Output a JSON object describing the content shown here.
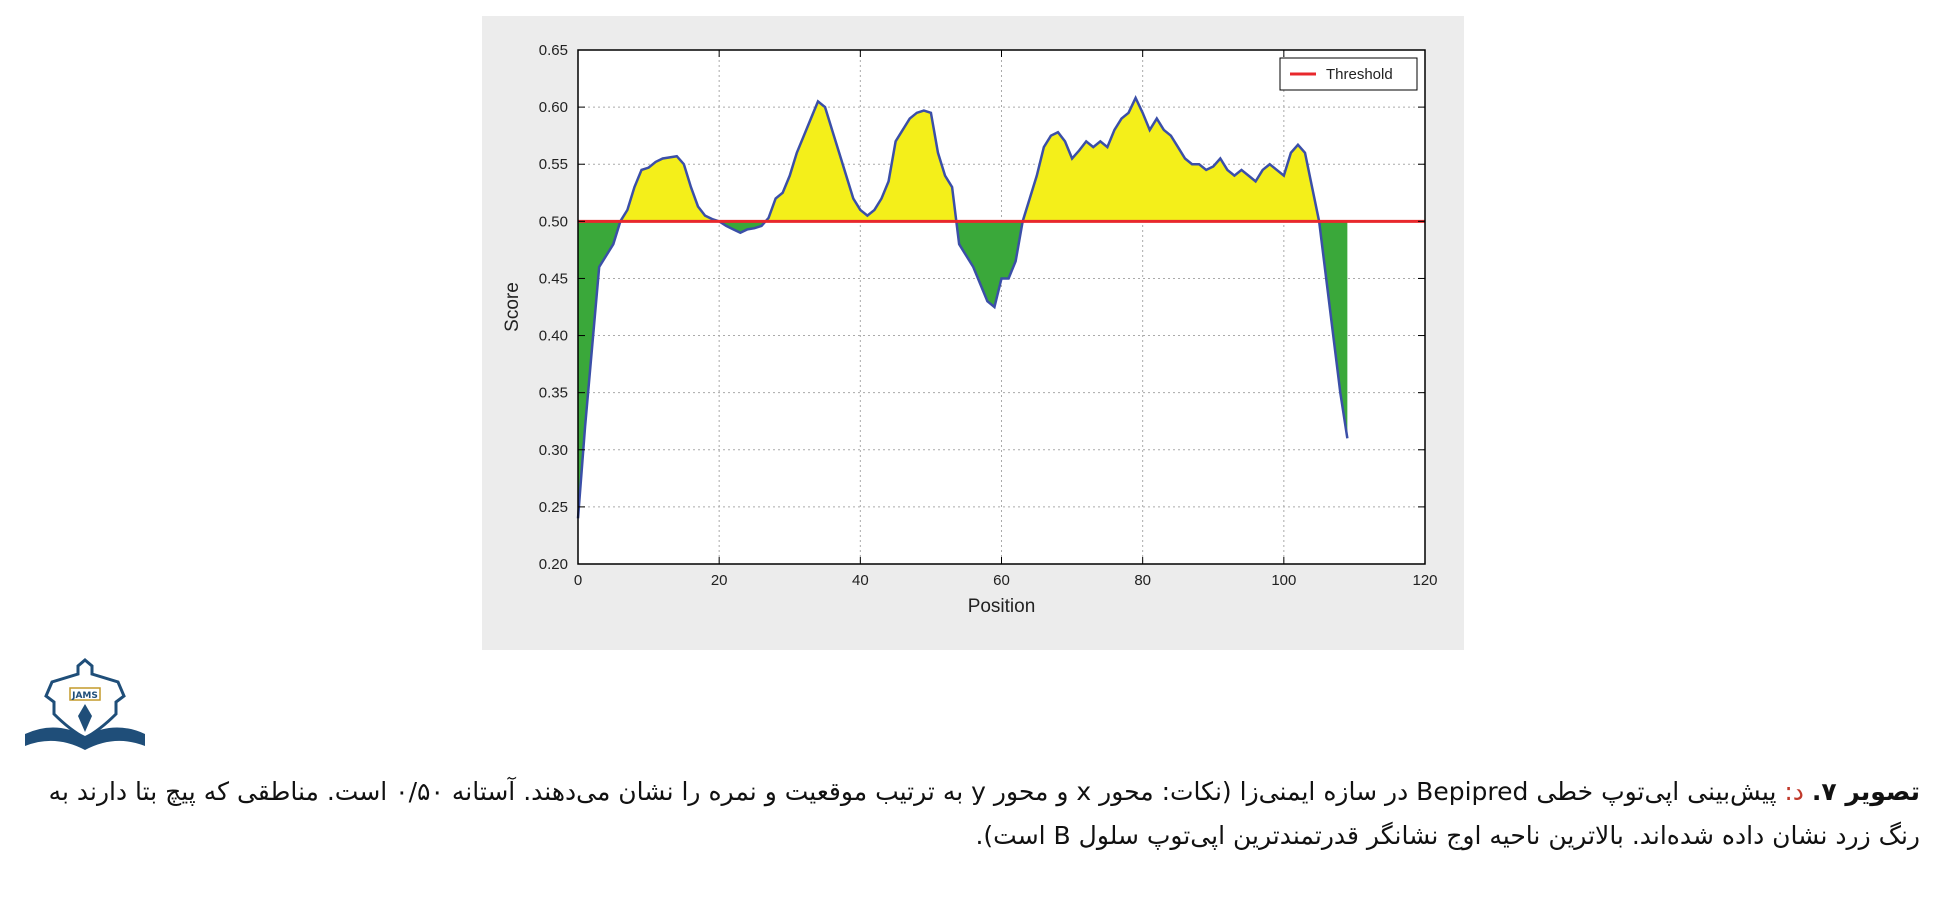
{
  "chart_data": {
    "type": "area",
    "xlabel": "Position",
    "ylabel": "Score",
    "xlim": [
      0,
      120
    ],
    "ylim": [
      0.2,
      0.65
    ],
    "xticks": [
      0,
      20,
      40,
      60,
      80,
      100,
      120
    ],
    "yticks": [
      0.2,
      0.25,
      0.3,
      0.35,
      0.4,
      0.45,
      0.5,
      0.55,
      0.6,
      0.65
    ],
    "xtick_labels": [
      "0",
      "20",
      "40",
      "60",
      "80",
      "100",
      "120"
    ],
    "ytick_labels": [
      "0.20",
      "0.25",
      "0.30",
      "0.35",
      "0.40",
      "0.45",
      "0.50",
      "0.55",
      "0.60",
      "0.65"
    ],
    "grid": true,
    "legend": {
      "placement": "top-right",
      "entries": [
        "Threshold"
      ]
    },
    "threshold": 0.5,
    "colors": {
      "line": "#3b4fa8",
      "above_fill": "#f4ef1a",
      "below_fill": "#3aa83a",
      "threshold": "#e8282c",
      "grid": "#aaaaaa",
      "plot_bg": "#ffffff",
      "panel_bg": "#ececec"
    },
    "x": [
      0,
      1,
      2,
      3,
      4,
      5,
      6,
      7,
      8,
      9,
      10,
      11,
      12,
      13,
      14,
      15,
      16,
      17,
      18,
      19,
      20,
      21,
      22,
      23,
      24,
      25,
      26,
      27,
      28,
      29,
      30,
      31,
      32,
      33,
      34,
      35,
      36,
      37,
      38,
      39,
      40,
      41,
      42,
      43,
      44,
      45,
      46,
      47,
      48,
      49,
      50,
      51,
      52,
      53,
      54,
      55,
      56,
      57,
      58,
      59,
      60,
      61,
      62,
      63,
      64,
      65,
      66,
      67,
      68,
      69,
      70,
      71,
      72,
      73,
      74,
      75,
      76,
      77,
      78,
      79,
      80,
      81,
      82,
      83,
      84,
      85,
      86,
      87,
      88,
      89,
      90,
      91,
      92,
      93,
      94,
      95,
      96,
      97,
      98,
      99,
      100,
      101,
      102,
      103,
      104,
      105,
      106,
      107,
      108,
      109
    ],
    "y": [
      0.24,
      0.32,
      0.39,
      0.46,
      0.47,
      0.48,
      0.5,
      0.51,
      0.53,
      0.545,
      0.547,
      0.552,
      0.555,
      0.556,
      0.557,
      0.55,
      0.53,
      0.513,
      0.505,
      0.502,
      0.5,
      0.496,
      0.493,
      0.49,
      0.493,
      0.494,
      0.496,
      0.503,
      0.52,
      0.525,
      0.54,
      0.56,
      0.575,
      0.59,
      0.605,
      0.6,
      0.58,
      0.56,
      0.54,
      0.52,
      0.51,
      0.505,
      0.51,
      0.52,
      0.535,
      0.57,
      0.58,
      0.59,
      0.595,
      0.597,
      0.595,
      0.56,
      0.54,
      0.53,
      0.48,
      0.47,
      0.46,
      0.445,
      0.43,
      0.425,
      0.45,
      0.45,
      0.465,
      0.5,
      0.52,
      0.54,
      0.565,
      0.575,
      0.578,
      0.57,
      0.555,
      0.562,
      0.57,
      0.565,
      0.57,
      0.565,
      0.58,
      0.59,
      0.595,
      0.608,
      0.595,
      0.58,
      0.59,
      0.58,
      0.575,
      0.565,
      0.555,
      0.55,
      0.55,
      0.545,
      0.548,
      0.555,
      0.545,
      0.54,
      0.545,
      0.54,
      0.535,
      0.545,
      0.55,
      0.545,
      0.54,
      0.56,
      0.567,
      0.56,
      0.53,
      0.5,
      0.45,
      0.4,
      0.35,
      0.31
    ]
  },
  "logo": {
    "text": "JAMS"
  },
  "caption": {
    "label": "تصویر ۷.",
    "sub": " د:",
    "text": " پیش‌بینی اپی‌توپ خطی Bepipred در سازه ایمنی‌زا (نکات: محور x و محور y به ترتیب موقعیت و نمره را نشان می‌دهند. آستانه ۰/۵۰ است. مناطقی که پیچ بتا دارند به رنگ زرد نشان داده شده‌اند. بالاترین ناحیه اوج نشانگر قدرتمندترین اپی‌توپ سلول B است)."
  }
}
